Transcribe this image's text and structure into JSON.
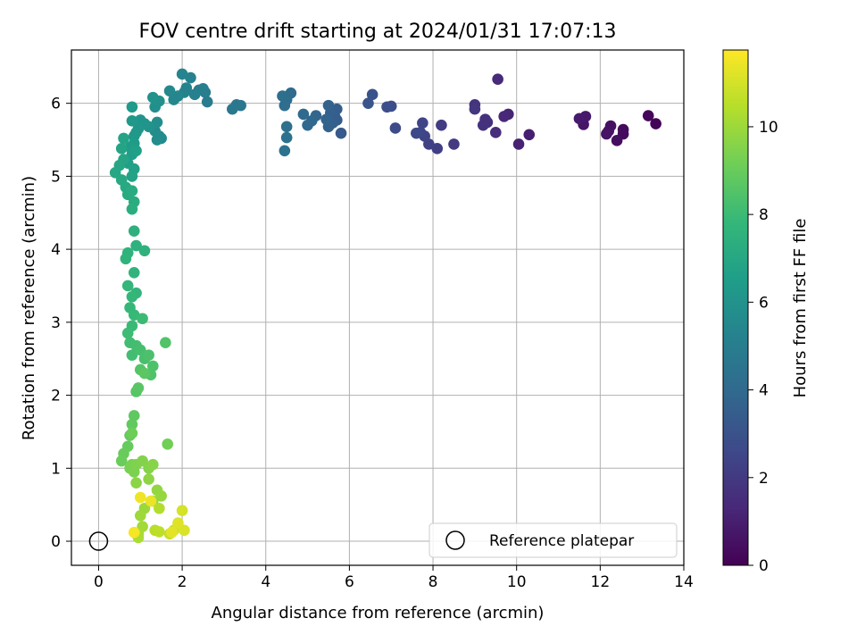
{
  "chart_data": {
    "type": "scatter",
    "title": "FOV centre drift starting at 2024/01/31 17:07:13",
    "xlabel": "Angular distance from reference (arcmin)",
    "ylabel": "Rotation from reference (arcmin)",
    "xlim": [
      -0.65,
      14.0
    ],
    "ylim": [
      -0.33,
      6.73
    ],
    "xticks": [
      0,
      2,
      4,
      6,
      8,
      10,
      12,
      14
    ],
    "yticks": [
      0,
      1,
      2,
      3,
      4,
      5,
      6
    ],
    "grid": true,
    "legend": {
      "placement": "lower-right",
      "entries": [
        "Reference platepar"
      ]
    },
    "reference_point": {
      "x": 0,
      "y": 0
    },
    "colorbar": {
      "label": "Hours from first FF file",
      "colormap": "viridis",
      "range": [
        0,
        11.75
      ],
      "ticks": [
        0,
        2,
        4,
        6,
        8,
        10
      ]
    },
    "points": [
      [
        13.33,
        5.72,
        0.1
      ],
      [
        13.15,
        5.83,
        0.2
      ],
      [
        12.55,
        5.64,
        0.3
      ],
      [
        12.55,
        5.58,
        0.35
      ],
      [
        12.4,
        5.49,
        0.4
      ],
      [
        12.25,
        5.69,
        0.5
      ],
      [
        12.2,
        5.62,
        0.55
      ],
      [
        12.15,
        5.58,
        0.6
      ],
      [
        11.6,
        5.71,
        0.7
      ],
      [
        11.65,
        5.82,
        0.8
      ],
      [
        11.5,
        5.79,
        0.85
      ],
      [
        10.3,
        5.57,
        1.0
      ],
      [
        10.05,
        5.44,
        1.1
      ],
      [
        9.8,
        5.85,
        1.2
      ],
      [
        9.7,
        5.82,
        1.3
      ],
      [
        9.55,
        6.33,
        1.4
      ],
      [
        9.5,
        5.6,
        1.5
      ],
      [
        9.3,
        5.74,
        1.6
      ],
      [
        9.25,
        5.78,
        1.65
      ],
      [
        9.2,
        5.7,
        1.7
      ],
      [
        9.0,
        5.98,
        1.8
      ],
      [
        9.0,
        5.92,
        1.85
      ],
      [
        8.5,
        5.44,
        2.0
      ],
      [
        8.2,
        5.7,
        2.1
      ],
      [
        8.1,
        5.38,
        2.2
      ],
      [
        7.9,
        5.44,
        2.3
      ],
      [
        7.8,
        5.55,
        2.4
      ],
      [
        7.75,
        5.73,
        2.45
      ],
      [
        7.7,
        5.6,
        2.5
      ],
      [
        7.6,
        5.59,
        2.6
      ],
      [
        7.1,
        5.66,
        2.7
      ],
      [
        7.0,
        5.96,
        2.8
      ],
      [
        6.9,
        5.95,
        2.85
      ],
      [
        6.55,
        6.12,
        3.0
      ],
      [
        6.45,
        6.0,
        3.1
      ],
      [
        5.8,
        5.59,
        3.3
      ],
      [
        5.7,
        5.77,
        3.4
      ],
      [
        5.7,
        5.92,
        3.45
      ],
      [
        5.65,
        5.82,
        3.5
      ],
      [
        5.6,
        5.73,
        3.55
      ],
      [
        5.55,
        5.87,
        3.6
      ],
      [
        5.5,
        5.97,
        3.65
      ],
      [
        5.5,
        5.68,
        3.7
      ],
      [
        5.45,
        5.78,
        3.75
      ],
      [
        5.2,
        5.83,
        3.85
      ],
      [
        5.1,
        5.76,
        3.9
      ],
      [
        5.0,
        5.7,
        3.95
      ],
      [
        4.9,
        5.85,
        4.0
      ],
      [
        4.6,
        6.14,
        4.1
      ],
      [
        4.5,
        6.05,
        4.15
      ],
      [
        4.45,
        5.97,
        4.2
      ],
      [
        4.4,
        6.1,
        4.25
      ],
      [
        4.5,
        5.68,
        4.3
      ],
      [
        4.5,
        5.53,
        4.35
      ],
      [
        4.45,
        5.35,
        4.4
      ],
      [
        3.4,
        5.97,
        4.6
      ],
      [
        3.3,
        5.98,
        4.65
      ],
      [
        3.2,
        5.92,
        4.7
      ],
      [
        2.6,
        6.02,
        4.9
      ],
      [
        2.55,
        6.15,
        4.95
      ],
      [
        2.5,
        6.2,
        5.0
      ],
      [
        2.4,
        6.18,
        5.05
      ],
      [
        2.3,
        6.12,
        5.1
      ],
      [
        2.2,
        6.35,
        5.15
      ],
      [
        2.1,
        6.21,
        5.2
      ],
      [
        2.05,
        6.15,
        5.25
      ],
      [
        2.0,
        6.4,
        5.3
      ],
      [
        1.9,
        6.1,
        5.4
      ],
      [
        1.8,
        6.05,
        5.45
      ],
      [
        1.7,
        6.17,
        5.5
      ],
      [
        1.5,
        5.52,
        5.6
      ],
      [
        1.45,
        5.55,
        5.65
      ],
      [
        1.4,
        5.5,
        5.7
      ],
      [
        1.35,
        5.62,
        5.75
      ],
      [
        1.4,
        5.74,
        5.8
      ],
      [
        1.35,
        5.95,
        5.85
      ],
      [
        1.45,
        6.03,
        5.9
      ],
      [
        1.3,
        6.08,
        5.95
      ],
      [
        1.2,
        5.68,
        6.0
      ],
      [
        1.1,
        5.72,
        6.05
      ],
      [
        1.0,
        5.77,
        6.1
      ],
      [
        0.95,
        5.65,
        6.15
      ],
      [
        0.9,
        5.6,
        6.2
      ],
      [
        0.85,
        5.55,
        6.25
      ],
      [
        0.8,
        5.76,
        6.3
      ],
      [
        0.8,
        5.95,
        6.35
      ],
      [
        0.85,
        5.45,
        6.4
      ],
      [
        0.75,
        5.4,
        6.5
      ],
      [
        0.8,
        5.3,
        6.55
      ],
      [
        0.7,
        5.18,
        6.6
      ],
      [
        0.9,
        5.35,
        6.65
      ],
      [
        0.85,
        5.1,
        6.7
      ],
      [
        0.8,
        5.0,
        6.75
      ],
      [
        0.6,
        5.52,
        6.8
      ],
      [
        0.55,
        5.38,
        6.85
      ],
      [
        0.6,
        5.23,
        6.9
      ],
      [
        0.5,
        5.15,
        6.95
      ],
      [
        0.4,
        5.05,
        7.0
      ],
      [
        0.55,
        4.95,
        7.05
      ],
      [
        0.65,
        4.85,
        7.1
      ],
      [
        0.7,
        4.75,
        7.15
      ],
      [
        0.8,
        4.8,
        7.2
      ],
      [
        0.85,
        4.65,
        7.25
      ],
      [
        0.8,
        4.55,
        7.3
      ],
      [
        0.85,
        4.25,
        7.4
      ],
      [
        0.9,
        4.05,
        7.45
      ],
      [
        1.1,
        3.98,
        7.5
      ],
      [
        0.7,
        3.95,
        7.55
      ],
      [
        0.65,
        3.87,
        7.6
      ],
      [
        0.85,
        3.68,
        7.65
      ],
      [
        0.9,
        3.4,
        7.7
      ],
      [
        0.7,
        3.5,
        7.75
      ],
      [
        0.8,
        3.35,
        7.8
      ],
      [
        0.75,
        3.2,
        7.85
      ],
      [
        0.85,
        3.1,
        7.9
      ],
      [
        0.8,
        2.95,
        7.95
      ],
      [
        1.05,
        3.05,
        8.0
      ],
      [
        0.7,
        2.85,
        8.05
      ],
      [
        0.75,
        2.72,
        8.1
      ],
      [
        0.8,
        2.55,
        8.15
      ],
      [
        0.9,
        2.68,
        8.2
      ],
      [
        1.0,
        2.62,
        8.25
      ],
      [
        1.1,
        2.5,
        8.3
      ],
      [
        1.2,
        2.55,
        8.35
      ],
      [
        1.3,
        2.4,
        8.4
      ],
      [
        1.25,
        2.28,
        8.45
      ],
      [
        1.6,
        2.72,
        8.5
      ],
      [
        1.0,
        2.35,
        8.55
      ],
      [
        0.9,
        2.05,
        8.6
      ],
      [
        0.95,
        2.1,
        8.65
      ],
      [
        1.1,
        2.3,
        8.7
      ],
      [
        0.85,
        1.72,
        8.8
      ],
      [
        0.8,
        1.6,
        8.85
      ],
      [
        0.75,
        1.45,
        8.9
      ],
      [
        0.7,
        1.3,
        8.95
      ],
      [
        0.6,
        1.2,
        9.0
      ],
      [
        0.55,
        1.1,
        9.05
      ],
      [
        0.8,
        1.48,
        9.1
      ],
      [
        1.65,
        1.33,
        9.2
      ],
      [
        0.75,
        1.0,
        9.3
      ],
      [
        0.8,
        1.05,
        9.35
      ],
      [
        0.85,
        0.95,
        9.4
      ],
      [
        0.9,
        1.05,
        9.45
      ],
      [
        1.05,
        1.1,
        9.5
      ],
      [
        1.2,
        1.0,
        9.55
      ],
      [
        1.3,
        1.05,
        9.6
      ],
      [
        0.9,
        0.8,
        9.65
      ],
      [
        1.2,
        0.85,
        9.7
      ],
      [
        1.4,
        0.7,
        9.8
      ],
      [
        1.5,
        0.62,
        9.85
      ],
      [
        1.3,
        0.55,
        9.9
      ],
      [
        1.1,
        0.45,
        9.95
      ],
      [
        1.0,
        0.35,
        10.0
      ],
      [
        1.05,
        0.2,
        10.1
      ],
      [
        0.95,
        0.1,
        10.2
      ],
      [
        0.95,
        0.05,
        10.25
      ],
      [
        1.45,
        0.45,
        10.4
      ],
      [
        1.35,
        0.15,
        10.5
      ],
      [
        1.45,
        0.13,
        10.6
      ],
      [
        1.7,
        0.1,
        10.7
      ],
      [
        1.8,
        0.15,
        10.8
      ],
      [
        1.9,
        0.2,
        10.9
      ],
      [
        2.0,
        0.42,
        11.0
      ],
      [
        2.05,
        0.15,
        11.1
      ],
      [
        1.9,
        0.25,
        11.2
      ],
      [
        1.75,
        0.12,
        11.3
      ],
      [
        1.25,
        0.55,
        11.4
      ],
      [
        1.0,
        0.6,
        11.5
      ],
      [
        0.85,
        0.12,
        11.6
      ]
    ]
  }
}
